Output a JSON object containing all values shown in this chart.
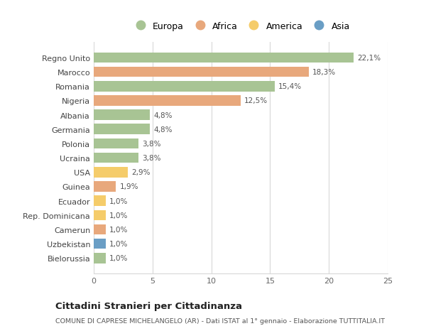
{
  "countries": [
    "Regno Unito",
    "Marocco",
    "Romania",
    "Nigeria",
    "Albania",
    "Germania",
    "Polonia",
    "Ucraina",
    "USA",
    "Guinea",
    "Ecuador",
    "Rep. Dominicana",
    "Camerun",
    "Uzbekistan",
    "Bielorussia"
  ],
  "values": [
    22.1,
    18.3,
    15.4,
    12.5,
    4.8,
    4.8,
    3.8,
    3.8,
    2.9,
    1.9,
    1.0,
    1.0,
    1.0,
    1.0,
    1.0
  ],
  "labels": [
    "22,1%",
    "18,3%",
    "15,4%",
    "12,5%",
    "4,8%",
    "4,8%",
    "3,8%",
    "3,8%",
    "2,9%",
    "1,9%",
    "1,0%",
    "1,0%",
    "1,0%",
    "1,0%",
    "1,0%"
  ],
  "continents": [
    "Europa",
    "Africa",
    "Europa",
    "Africa",
    "Europa",
    "Europa",
    "Europa",
    "Europa",
    "America",
    "Africa",
    "America",
    "America",
    "Africa",
    "Asia",
    "Europa"
  ],
  "continent_colors": {
    "Europa": "#a8c494",
    "Africa": "#e8a87c",
    "America": "#f5cc6a",
    "Asia": "#6a9ec5"
  },
  "legend_order": [
    "Europa",
    "Africa",
    "America",
    "Asia"
  ],
  "xlim": [
    0,
    25
  ],
  "xticks": [
    0,
    5,
    10,
    15,
    20,
    25
  ],
  "title": "Cittadini Stranieri per Cittadinanza",
  "subtitle": "COMUNE DI CAPRESE MICHELANGELO (AR) - Dati ISTAT al 1° gennaio - Elaborazione TUTTITALIA.IT",
  "bg_color": "#ffffff",
  "grid_color": "#d8d8d8",
  "bar_height": 0.72
}
